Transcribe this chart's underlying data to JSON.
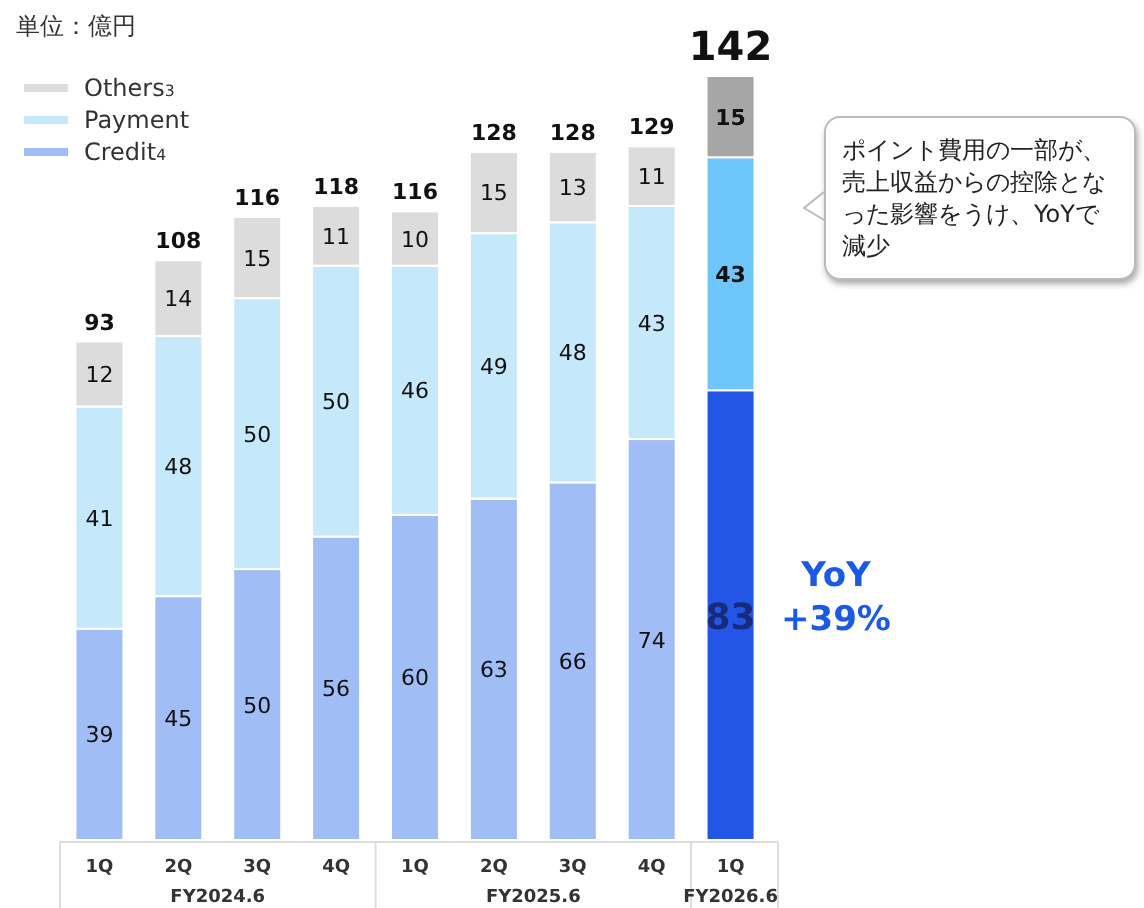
{
  "chart_data": {
    "type": "bar",
    "stacked": true,
    "data_labels": true,
    "legend": "top left",
    "categories": [
      "1Q",
      "2Q",
      "3Q",
      "4Q",
      "1Q",
      "2Q",
      "3Q",
      "4Q",
      "1Q"
    ],
    "series": [
      {
        "name": "Credit$_{4}$",
        "color": "#a0bdf5",
        "colors": [
          "#a0bdf5",
          "#a0bdf5",
          "#a0bdf5",
          "#a0bdf5",
          "#a0bdf5",
          "#a0bdf5",
          "#a0bdf5",
          "#a0bdf5",
          "#2456e6"
        ],
        "values": [
          39,
          45,
          50,
          56,
          60,
          63,
          66,
          74,
          83
        ]
      },
      {
        "name": "Payment",
        "color": "#c5e8fb",
        "colors": [
          "#c5e8fb",
          "#c5e8fb",
          "#c5e8fb",
          "#c5e8fb",
          "#c5e8fb",
          "#c5e8fb",
          "#c5e8fb",
          "#c5e8fb",
          "#6ec6fa"
        ],
        "values": [
          41,
          48,
          50,
          50,
          46,
          49,
          48,
          43,
          43
        ]
      },
      {
        "name": "Others$_{3}$",
        "color": "#dcdcdc",
        "colors": [
          "#dcdcdc",
          "#dcdcdc",
          "#dcdcdc",
          "#dcdcdc",
          "#dcdcdc",
          "#dcdcdc",
          "#dcdcdc",
          "#dcdcdc",
          "#a6a6a6"
        ],
        "values": [
          12,
          14,
          15,
          11,
          10,
          15,
          13,
          11,
          15
        ]
      }
    ],
    "totals": [
      "93",
      "108",
      "116",
      "118",
      "116",
      "128",
      "128",
      "129",
      "142"
    ],
    "annotations": [
      "単位：億円",
      "FY2024.6",
      "FY2025.6",
      "FY2026.6",
      "ポイント費用の一部が、売上収益からの控除となった影響をうけ、YoYで減少",
      "YoY +39%"
    ]
  }
}
